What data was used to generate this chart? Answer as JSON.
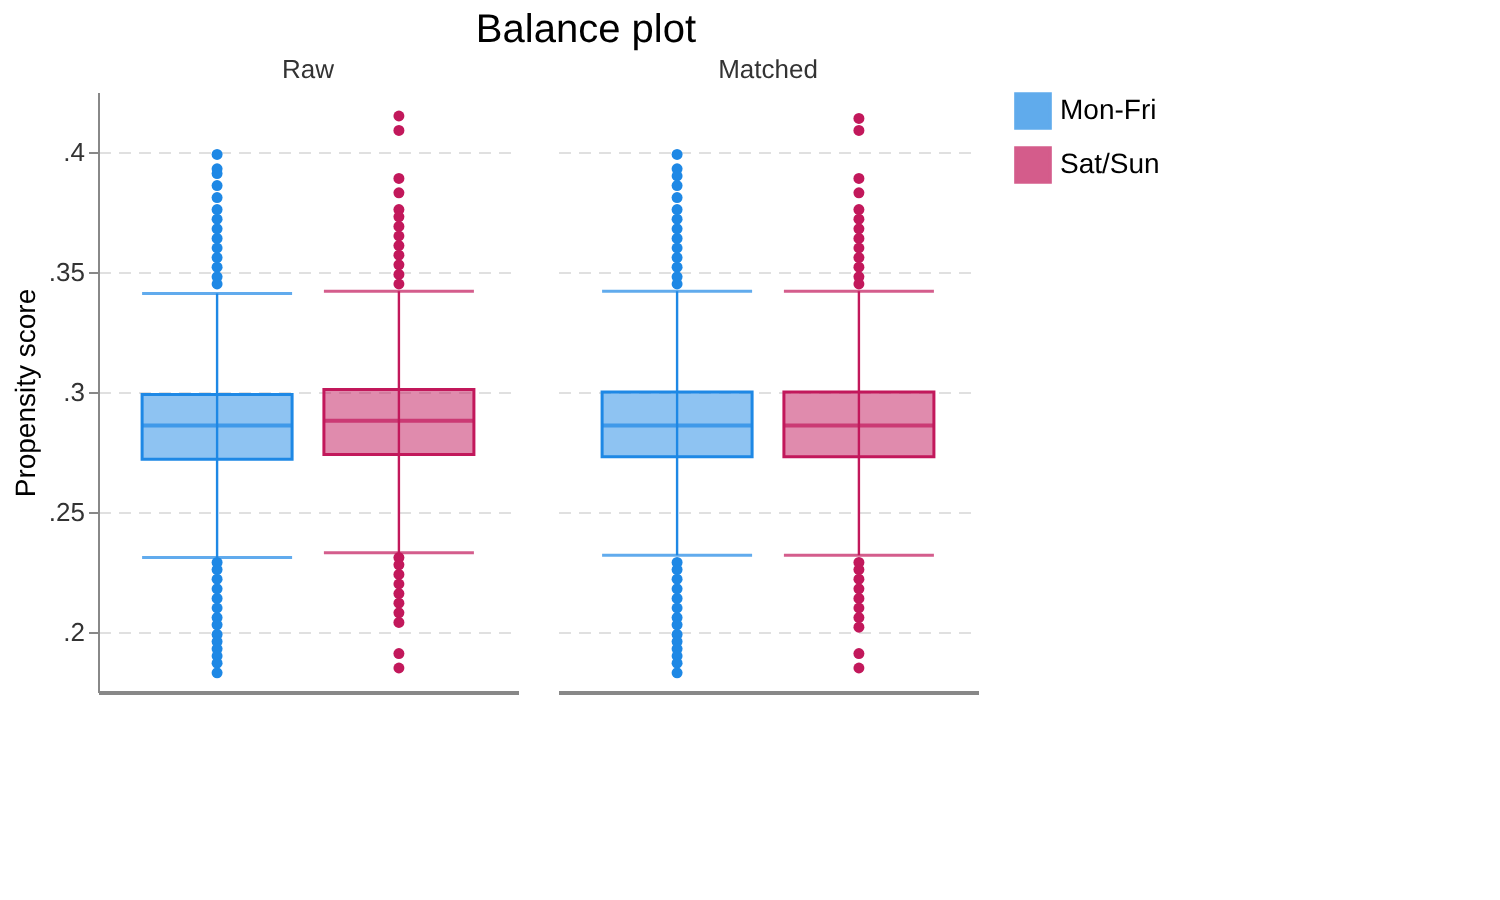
{
  "chart_data": {
    "type": "box",
    "title": "Balance plot",
    "ylabel": "Propensity score",
    "categories": [
      "Raw",
      "Matched"
    ],
    "series": [
      {
        "name": "Mon-Fri",
        "color": "#1e88e5",
        "boxes": [
          {
            "low": 0.231,
            "q1": 0.272,
            "median": 0.286,
            "q3": 0.299,
            "high": 0.341,
            "outliers": [
              0.399,
              0.393,
              0.391,
              0.386,
              0.381,
              0.376,
              0.372,
              0.368,
              0.364,
              0.36,
              0.356,
              0.352,
              0.348,
              0.345,
              0.229,
              0.226,
              0.222,
              0.218,
              0.214,
              0.21,
              0.206,
              0.203,
              0.199,
              0.196,
              0.193,
              0.19,
              0.187,
              0.183
            ]
          },
          {
            "low": 0.232,
            "q1": 0.273,
            "median": 0.286,
            "q3": 0.3,
            "high": 0.342,
            "outliers": [
              0.399,
              0.393,
              0.39,
              0.386,
              0.381,
              0.376,
              0.372,
              0.368,
              0.364,
              0.36,
              0.356,
              0.352,
              0.348,
              0.345,
              0.229,
              0.226,
              0.222,
              0.218,
              0.214,
              0.21,
              0.206,
              0.203,
              0.199,
              0.196,
              0.193,
              0.19,
              0.187,
              0.183
            ]
          }
        ]
      },
      {
        "name": "Sat/Sun",
        "color": "#c2185b",
        "boxes": [
          {
            "low": 0.233,
            "q1": 0.274,
            "median": 0.288,
            "q3": 0.301,
            "high": 0.342,
            "outliers": [
              0.415,
              0.409,
              0.389,
              0.383,
              0.376,
              0.373,
              0.369,
              0.365,
              0.361,
              0.357,
              0.353,
              0.349,
              0.345,
              0.231,
              0.228,
              0.224,
              0.22,
              0.216,
              0.212,
              0.208,
              0.204,
              0.191,
              0.185
            ]
          },
          {
            "low": 0.232,
            "q1": 0.273,
            "median": 0.286,
            "q3": 0.3,
            "high": 0.342,
            "outliers": [
              0.414,
              0.409,
              0.389,
              0.383,
              0.376,
              0.372,
              0.368,
              0.364,
              0.36,
              0.356,
              0.352,
              0.348,
              0.345,
              0.229,
              0.226,
              0.222,
              0.218,
              0.214,
              0.21,
              0.206,
              0.202,
              0.191,
              0.185
            ]
          }
        ]
      }
    ],
    "ylim": [
      0.175,
      0.425
    ],
    "yticks": [
      {
        "value": 0.2,
        "label": ".2"
      },
      {
        "value": 0.25,
        "label": ".25"
      },
      {
        "value": 0.3,
        "label": ".3"
      },
      {
        "value": 0.35,
        "label": ".35"
      },
      {
        "value": 0.4,
        "label": ".4"
      }
    ],
    "grid": "y",
    "legend": "right"
  }
}
